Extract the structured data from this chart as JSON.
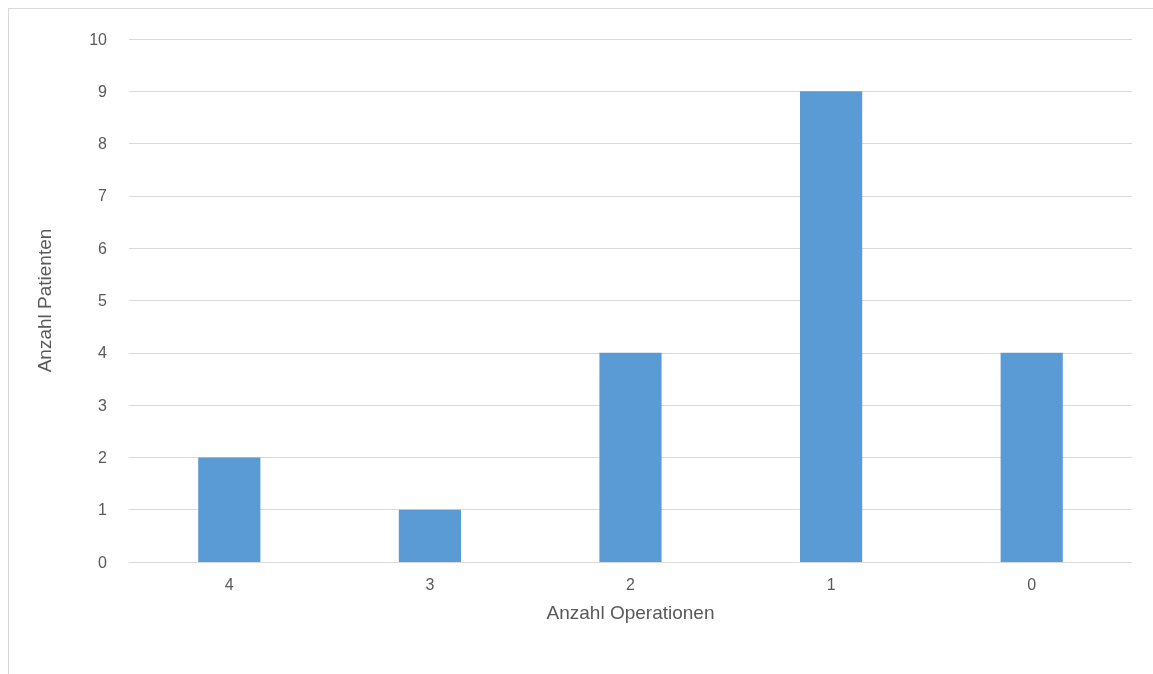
{
  "chart_data": {
    "type": "bar",
    "xlabel": "Anzahl Operationen",
    "ylabel": "Anzahl Patienten",
    "categories": [
      "4",
      "3",
      "2",
      "1",
      "0"
    ],
    "values": [
      2,
      1,
      4,
      9,
      4
    ],
    "color": "#5b9bd5",
    "ylim": [
      0,
      10
    ],
    "yticks": [
      0,
      1,
      2,
      3,
      4,
      5,
      6,
      7,
      8,
      9,
      10
    ],
    "grid": "y"
  }
}
